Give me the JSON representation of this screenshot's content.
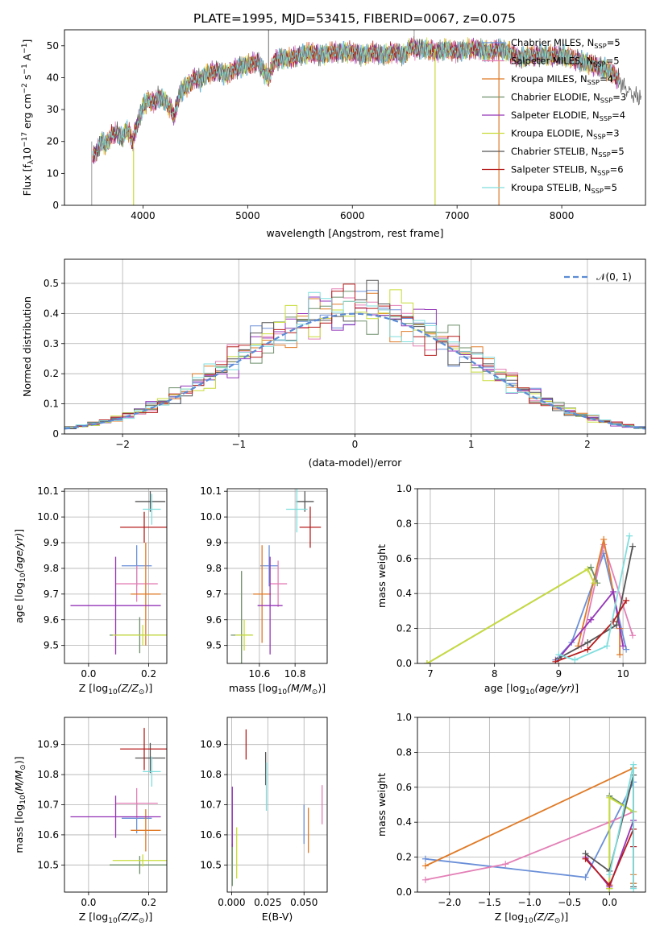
{
  "figure": {
    "title": "PLATE=1995, MJD=53415, FIBERID=0067, z=0.075"
  },
  "colors": {
    "Chabrier MILES": "#6a8fd8",
    "Salpeter MILES": "#e37fb6",
    "Kroupa MILES": "#e07a26",
    "Chabrier ELODIE": "#6e8f6a",
    "Salpeter ELODIE": "#9434b8",
    "Kroupa ELODIE": "#c8dc39",
    "Chabrier STELIB": "#555555",
    "Salpeter STELIB": "#b61c1c",
    "Kroupa STELIB": "#7fdede",
    "gauss": "#5b8bd5",
    "grid": "#b0b0b0"
  },
  "chart_data": [
    {
      "id": "spectrum",
      "type": "line",
      "xlabel": "wavelength [Angstrom, rest frame]",
      "ylabel": "Flux [f",
      "ylabel_parts": {
        "pre": "Flux [f",
        "sub": "λ",
        "mid": "10",
        "sup1": "−17",
        "mid2": " erg cm",
        "sup2": "−2",
        "mid3": " s",
        "sup3": "−1",
        "mid4": " A",
        "sup4": "−1",
        "post": "]"
      },
      "xlim": [
        3250,
        8800
      ],
      "ylim": [
        0,
        55
      ],
      "xticks": [
        4000,
        5000,
        6000,
        7000,
        8000
      ],
      "yticks": [
        0,
        10,
        20,
        30,
        40,
        50
      ],
      "legend_position": "top-right",
      "legend": [
        {
          "name": "Chabrier MILES",
          "nssp": "5"
        },
        {
          "name": "Salpeter MILES",
          "nssp": "5"
        },
        {
          "name": "Kroupa MILES",
          "nssp": "4"
        },
        {
          "name": "Chabrier ELODIE",
          "nssp": "3"
        },
        {
          "name": "Salpeter ELODIE",
          "nssp": "4"
        },
        {
          "name": "Kroupa ELODIE",
          "nssp": "3"
        },
        {
          "name": "Chabrier STELIB",
          "nssp": "5"
        },
        {
          "name": "Salpeter STELIB",
          "nssp": "6"
        },
        {
          "name": "Kroupa STELIB",
          "nssp": "5"
        }
      ],
      "data_envelope": {
        "x": [
          3520,
          3560,
          3600,
          3650,
          3700,
          3750,
          3800,
          3850,
          3900,
          3950,
          4000,
          4050,
          4100,
          4150,
          4200,
          4250,
          4300,
          4350,
          4400,
          4450,
          4500,
          4550,
          4600,
          4700,
          4800,
          4900,
          5000,
          5100,
          5150,
          5200,
          5250,
          5300,
          5400,
          5500,
          5600,
          5700,
          5800,
          5900,
          6000,
          6100,
          6200,
          6300,
          6400,
          6500,
          6560,
          6600,
          6700,
          6800,
          6900,
          7000,
          7100,
          7200,
          7300,
          7400,
          7500,
          7600,
          7700,
          7800,
          7900,
          8000,
          8100,
          8200,
          8300,
          8400,
          8500,
          8600,
          8700
        ],
        "y": [
          15,
          17,
          20,
          19,
          22,
          23,
          21,
          24,
          20,
          26,
          31,
          33,
          32,
          34,
          33,
          31,
          28,
          35,
          37,
          38,
          40,
          39,
          41,
          42,
          41,
          43,
          44,
          45,
          42,
          40,
          45,
          46,
          46,
          47,
          48,
          47,
          48,
          48,
          48,
          47,
          48,
          47,
          48,
          47,
          50,
          49,
          49,
          48,
          49,
          48,
          49,
          49,
          48,
          49,
          48,
          46,
          47,
          47,
          47,
          47,
          46,
          45,
          44,
          43,
          41,
          37,
          34
        ]
      },
      "lines_annotated": [
        {
          "x": 3510,
          "from": 0,
          "to": 20
        },
        {
          "x": 3910,
          "from": 0,
          "to": 18
        },
        {
          "x": 5200,
          "from": 42,
          "to": 55
        },
        {
          "x": 6590,
          "from": 49,
          "to": 55
        },
        {
          "x": 6790,
          "from": 0,
          "to": 49
        },
        {
          "x": 7400,
          "from": 0,
          "to": 48
        }
      ]
    },
    {
      "id": "residuals",
      "type": "bar",
      "xlabel": "(data-model)/error",
      "ylabel": "Normed distribution",
      "xlim": [
        -2.5,
        2.5
      ],
      "ylim": [
        0,
        0.58
      ],
      "xticks": [
        -2,
        -1,
        0,
        1,
        2
      ],
      "yticks": [
        0.0,
        0.1,
        0.2,
        0.3,
        0.4,
        0.5
      ],
      "grid": true,
      "legend_position": "top-right",
      "legend": [
        {
          "name": "𝒩(0, 1)",
          "style": "dashed"
        }
      ],
      "bin_width": 0.1,
      "gaussian": {
        "mean": 0,
        "sigma": 1
      }
    },
    {
      "id": "age-vs-Z",
      "type": "scatter",
      "xlabel_parts": {
        "pre": "Z [log",
        "sub": "10",
        "mid": "(Z/Z",
        "sub2": "⊙",
        "post": ")]"
      },
      "ylabel_parts": {
        "pre": "age  [log",
        "sub": "10",
        "mid": "(age/yr)",
        "post": "]"
      },
      "xlim": [
        -0.08,
        0.26
      ],
      "ylim": [
        9.43,
        10.11
      ],
      "xticks": [
        0.0,
        0.2
      ],
      "yticks": [
        9.5,
        9.6,
        9.7,
        9.8,
        9.9,
        10.0,
        10.1
      ],
      "grid": true,
      "points": [
        {
          "model": "Chabrier MILES",
          "x": 0.16,
          "xerr": 0.05,
          "y": 9.81,
          "yerr": 0.08
        },
        {
          "model": "Salpeter MILES",
          "x": 0.16,
          "xerr": 0.07,
          "y": 9.74,
          "yerr": 0.07
        },
        {
          "model": "Kroupa MILES",
          "x": 0.19,
          "xerr": 0.05,
          "y": 9.7,
          "yerr": 0.2
        },
        {
          "model": "Chabrier ELODIE",
          "x": 0.17,
          "xerr": 0.1,
          "y": 9.54,
          "yerr": 0.07
        },
        {
          "model": "Salpeter ELODIE",
          "x": 0.09,
          "xerr": 0.15,
          "y": 9.655,
          "yerr": 0.19
        },
        {
          "model": "Kroupa ELODIE",
          "x": 0.18,
          "xerr": 0.1,
          "y": 9.54,
          "yerr": 0.04
        },
        {
          "model": "Chabrier STELIB",
          "x": 0.205,
          "xerr": 0.05,
          "y": 10.06,
          "yerr": 0.04
        },
        {
          "model": "Salpeter STELIB",
          "x": 0.185,
          "xerr": 0.08,
          "y": 9.96,
          "yerr": 0.06
        },
        {
          "model": "Kroupa STELIB",
          "x": 0.21,
          "xerr": 0.03,
          "y": 10.03,
          "yerr": 0.06
        }
      ]
    },
    {
      "id": "age-vs-mass",
      "type": "scatter",
      "xlabel_parts": {
        "pre": "mass [log",
        "sub": "10",
        "mid": "(M/M",
        "sub2": "⊙",
        "post": ")]"
      },
      "xlim": [
        10.42,
        10.98
      ],
      "ylim": [
        9.43,
        10.11
      ],
      "xticks": [
        10.6,
        10.8
      ],
      "yticks": [
        9.5,
        9.6,
        9.7,
        9.8,
        9.9,
        10.0,
        10.1
      ],
      "grid": true,
      "points": [
        {
          "model": "Chabrier MILES",
          "x": 10.655,
          "xerr": 0.05,
          "y": 9.81,
          "yerr": 0.08
        },
        {
          "model": "Salpeter MILES",
          "x": 10.705,
          "xerr": 0.05,
          "y": 9.74,
          "yerr": 0.09
        },
        {
          "model": "Kroupa MILES",
          "x": 10.615,
          "xerr": 0.05,
          "y": 9.7,
          "yerr": 0.19
        },
        {
          "model": "Chabrier ELODIE",
          "x": 10.5,
          "xerr": 0.06,
          "y": 9.54,
          "yerr": 0.25
        },
        {
          "model": "Salpeter ELODIE",
          "x": 10.66,
          "xerr": 0.07,
          "y": 9.655,
          "yerr": 0.19
        },
        {
          "model": "Kroupa ELODIE",
          "x": 10.515,
          "xerr": 0.05,
          "y": 9.54,
          "yerr": 0.06
        },
        {
          "model": "Chabrier STELIB",
          "x": 10.855,
          "xerr": 0.05,
          "y": 10.06,
          "yerr": 0.04
        },
        {
          "model": "Salpeter STELIB",
          "x": 10.885,
          "xerr": 0.06,
          "y": 9.96,
          "yerr": 0.08
        },
        {
          "model": "Kroupa STELIB",
          "x": 10.81,
          "xerr": 0.06,
          "y": 10.03,
          "yerr": 0.09
        }
      ]
    },
    {
      "id": "massweight-vs-age",
      "type": "line",
      "xlabel_parts": {
        "pre": "age  [log",
        "sub": "10",
        "mid": "(age/yr)",
        "post": "]"
      },
      "ylabel": "mass weight",
      "xlim": [
        6.8,
        10.35
      ],
      "ylim": [
        0,
        1.0
      ],
      "xticks": [
        7,
        8,
        9,
        10
      ],
      "yticks": [
        0.0,
        0.2,
        0.4,
        0.6,
        0.8,
        1.0
      ],
      "grid": true,
      "series": [
        {
          "model": "Chabrier MILES",
          "x": [
            8.95,
            9.2,
            9.7,
            10.05
          ],
          "y": [
            0.02,
            0.12,
            0.63,
            0.08
          ]
        },
        {
          "model": "Salpeter MILES",
          "x": [
            9.0,
            9.35,
            9.7,
            10.15
          ],
          "y": [
            0.03,
            0.1,
            0.68,
            0.16
          ]
        },
        {
          "model": "Kroupa MILES",
          "x": [
            9.3,
            9.7,
            9.95,
            9.95
          ],
          "y": [
            0.1,
            0.71,
            0.2,
            0.05
          ]
        },
        {
          "model": "Chabrier ELODIE",
          "x": [
            6.95,
            9.5,
            9.6
          ],
          "y": [
            0.0,
            0.55,
            0.46
          ]
        },
        {
          "model": "Salpeter ELODIE",
          "x": [
            9.0,
            9.5,
            9.85,
            10.0
          ],
          "y": [
            0.03,
            0.25,
            0.41,
            0.1
          ]
        },
        {
          "model": "Kroupa ELODIE",
          "x": [
            6.95,
            9.45,
            9.55
          ],
          "y": [
            0.0,
            0.54,
            0.46
          ]
        },
        {
          "model": "Chabrier STELIB",
          "x": [
            9.0,
            9.45,
            9.9,
            10.15
          ],
          "y": [
            0.03,
            0.12,
            0.22,
            0.67
          ]
        },
        {
          "model": "Salpeter STELIB",
          "x": [
            8.95,
            9.45,
            9.85,
            10.05
          ],
          "y": [
            0.01,
            0.08,
            0.24,
            0.36
          ]
        },
        {
          "model": "Kroupa STELIB",
          "x": [
            9.0,
            9.25,
            9.75,
            10.1
          ],
          "y": [
            0.05,
            0.02,
            0.1,
            0.73
          ]
        }
      ]
    },
    {
      "id": "mass-vs-Z",
      "type": "scatter",
      "xlabel_parts": {
        "pre": "Z [log",
        "sub": "10",
        "mid": "(Z/Z",
        "sub2": "⊙",
        "post": ")]"
      },
      "ylabel_parts": {
        "pre": "mass [log",
        "sub": "10",
        "mid": "(M/M",
        "sub2": "⊙",
        "post": ")]"
      },
      "xlim": [
        -0.08,
        0.26
      ],
      "ylim": [
        10.41,
        10.99
      ],
      "xticks": [
        0.0,
        0.2
      ],
      "yticks": [
        10.5,
        10.6,
        10.7,
        10.8,
        10.9
      ],
      "grid": true,
      "points": [
        {
          "model": "Chabrier MILES",
          "x": 0.16,
          "xerr": 0.05,
          "y": 10.655,
          "yerr": 0.05
        },
        {
          "model": "Salpeter MILES",
          "x": 0.16,
          "xerr": 0.07,
          "y": 10.705,
          "yerr": 0.05
        },
        {
          "model": "Kroupa MILES",
          "x": 0.19,
          "xerr": 0.05,
          "y": 10.615,
          "yerr": 0.07
        },
        {
          "model": "Chabrier ELODIE",
          "x": 0.17,
          "xerr": 0.1,
          "y": 10.5,
          "yerr": 0.03
        },
        {
          "model": "Salpeter ELODIE",
          "x": 0.09,
          "xerr": 0.15,
          "y": 10.66,
          "yerr": 0.07
        },
        {
          "model": "Kroupa ELODIE",
          "x": 0.18,
          "xerr": 0.1,
          "y": 10.515,
          "yerr": 0.02
        },
        {
          "model": "Chabrier STELIB",
          "x": 0.205,
          "xerr": 0.05,
          "y": 10.855,
          "yerr": 0.05
        },
        {
          "model": "Salpeter STELIB",
          "x": 0.185,
          "xerr": 0.08,
          "y": 10.885,
          "yerr": 0.07
        },
        {
          "model": "Kroupa STELIB",
          "x": 0.21,
          "xerr": 0.03,
          "y": 10.81,
          "yerr": 0.05
        }
      ]
    },
    {
      "id": "mass-vs-EBV",
      "type": "scatter",
      "xlabel": "E(B-V)",
      "xlim": [
        -0.003,
        0.066
      ],
      "ylim": [
        10.41,
        10.99
      ],
      "xticks": [
        0.0,
        0.025,
        0.05
      ],
      "xticklabels": [
        "0.000",
        "0.025",
        "0.050"
      ],
      "yticks": [
        10.5,
        10.6,
        10.7,
        10.8,
        10.9
      ],
      "grid": true,
      "points": [
        {
          "model": "Chabrier MILES",
          "x": 0.05,
          "y": 10.635,
          "yerr": 0.065
        },
        {
          "model": "Salpeter MILES",
          "x": 0.0625,
          "y": 10.7,
          "yerr": 0.065
        },
        {
          "model": "Kroupa MILES",
          "x": 0.053,
          "y": 10.615,
          "yerr": 0.075
        },
        {
          "model": "Chabrier ELODIE",
          "x": 0.0005,
          "y": 10.5,
          "yerr": 0.07
        },
        {
          "model": "Salpeter ELODIE",
          "x": 0.0005,
          "y": 10.66,
          "yerr": 0.1
        },
        {
          "model": "Kroupa ELODIE",
          "x": 0.0035,
          "y": 10.54,
          "yerr": 0.085
        },
        {
          "model": "Chabrier STELIB",
          "x": 0.0235,
          "y": 10.82,
          "yerr": 0.055
        },
        {
          "model": "Salpeter STELIB",
          "x": 0.01,
          "y": 10.9,
          "yerr": 0.05
        },
        {
          "model": "Kroupa STELIB",
          "x": 0.024,
          "y": 10.76,
          "yerr": 0.08
        }
      ]
    },
    {
      "id": "massweight-vs-Z",
      "type": "line",
      "xlabel_parts": {
        "pre": "Z [log",
        "sub": "10",
        "mid": "(Z/Z",
        "sub2": "⊙",
        "post": ")]"
      },
      "ylabel": "mass weight",
      "xlim": [
        -2.4,
        0.45
      ],
      "ylim": [
        0,
        1.0
      ],
      "xticks": [
        -2.0,
        -1.5,
        -1.0,
        -0.5,
        0.0
      ],
      "xticklabels": [
        "−2.0",
        "−1.5",
        "−1.0",
        "−0.5",
        "0.0"
      ],
      "yticks": [
        0.0,
        0.2,
        0.4,
        0.6,
        0.8,
        1.0
      ],
      "grid": true,
      "series": [
        {
          "model": "Chabrier MILES",
          "x": [
            -2.3,
            -0.3,
            0.3,
            0.3
          ],
          "y": [
            0.19,
            0.085,
            0.63,
            0.05
          ]
        },
        {
          "model": "Salpeter MILES",
          "x": [
            -2.3,
            -1.3,
            0.0,
            0.3
          ],
          "y": [
            0.07,
            0.16,
            0.4,
            0.46
          ]
        },
        {
          "model": "Kroupa MILES",
          "x": [
            -2.3,
            0.3,
            0.3,
            0.3
          ],
          "y": [
            0.15,
            0.71,
            0.1,
            0.05
          ]
        },
        {
          "model": "Chabrier ELODIE",
          "x": [
            0.0,
            0.0,
            0.3
          ],
          "y": [
            0.02,
            0.55,
            0.46
          ]
        },
        {
          "model": "Salpeter ELODIE",
          "x": [
            -0.3,
            0.0,
            0.3,
            0.3
          ],
          "y": [
            0.2,
            0.03,
            0.41,
            0.26
          ]
        },
        {
          "model": "Kroupa ELODIE",
          "x": [
            0.0,
            0.0,
            0.3
          ],
          "y": [
            0.02,
            0.54,
            0.46
          ]
        },
        {
          "model": "Chabrier STELIB",
          "x": [
            -0.3,
            0.0,
            0.3,
            0.3
          ],
          "y": [
            0.22,
            0.12,
            0.67,
            0.03
          ]
        },
        {
          "model": "Salpeter STELIB",
          "x": [
            -0.3,
            0.0,
            0.3,
            0.3
          ],
          "y": [
            0.19,
            0.04,
            0.36,
            0.26
          ]
        },
        {
          "model": "Kroupa STELIB",
          "x": [
            0.0,
            0.3,
            0.3
          ],
          "y": [
            0.1,
            0.73,
            0.02
          ]
        }
      ]
    }
  ]
}
